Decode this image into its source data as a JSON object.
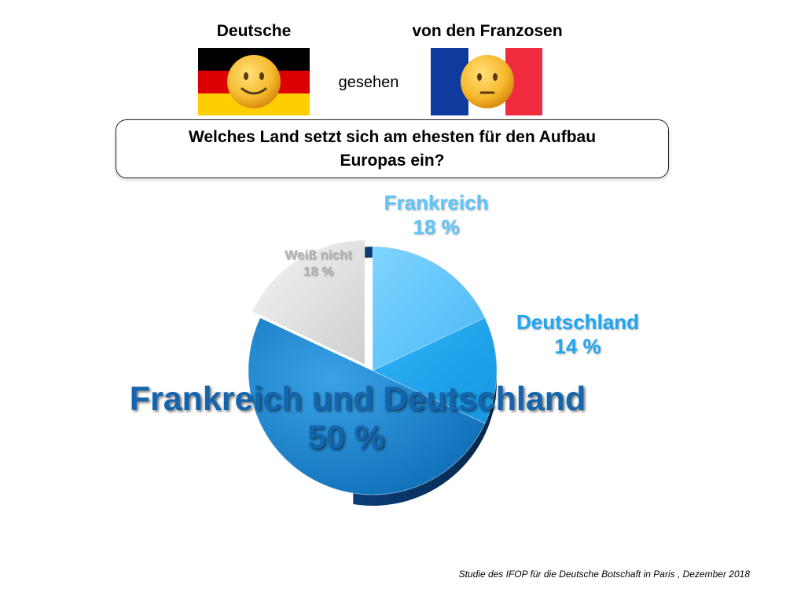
{
  "header": {
    "left_label": "Deutsche",
    "middle_label": "gesehen",
    "right_label": "von den Franzosen",
    "flags": [
      {
        "name": "germany",
        "colors": [
          "#000000",
          "#dd0000",
          "#ffce00"
        ]
      },
      {
        "name": "france",
        "colors": [
          "#0f3a9e",
          "#ffffff",
          "#ef2b3d"
        ]
      }
    ],
    "faces": [
      "smiling-face-icon",
      "neutral-face-icon"
    ]
  },
  "question": {
    "line1": "Welches Land setzt sich am ehesten für den Aufbau",
    "line2": "Europas ein?"
  },
  "chart_data": {
    "type": "pie",
    "title": "Welches Land setzt sich am ehesten für den Aufbau Europas ein?",
    "slices": [
      {
        "label": "Frankreich",
        "value_text": "18 %",
        "value": 18,
        "color": "#5cc6fb"
      },
      {
        "label": "Deutschland",
        "value_text": "14 %",
        "value": 14,
        "color": "#1da7f3"
      },
      {
        "label": "Frankreich und Deutschland",
        "value_text": "50 %",
        "value": 50,
        "color": "#1f86cf"
      },
      {
        "label": "Weiß nicht",
        "value_text": "18 %",
        "value": 18,
        "color": "#dedede"
      }
    ]
  },
  "source": "Studie des IFOP für die Deutsche Botschaft in Paris , Dezember 2018"
}
